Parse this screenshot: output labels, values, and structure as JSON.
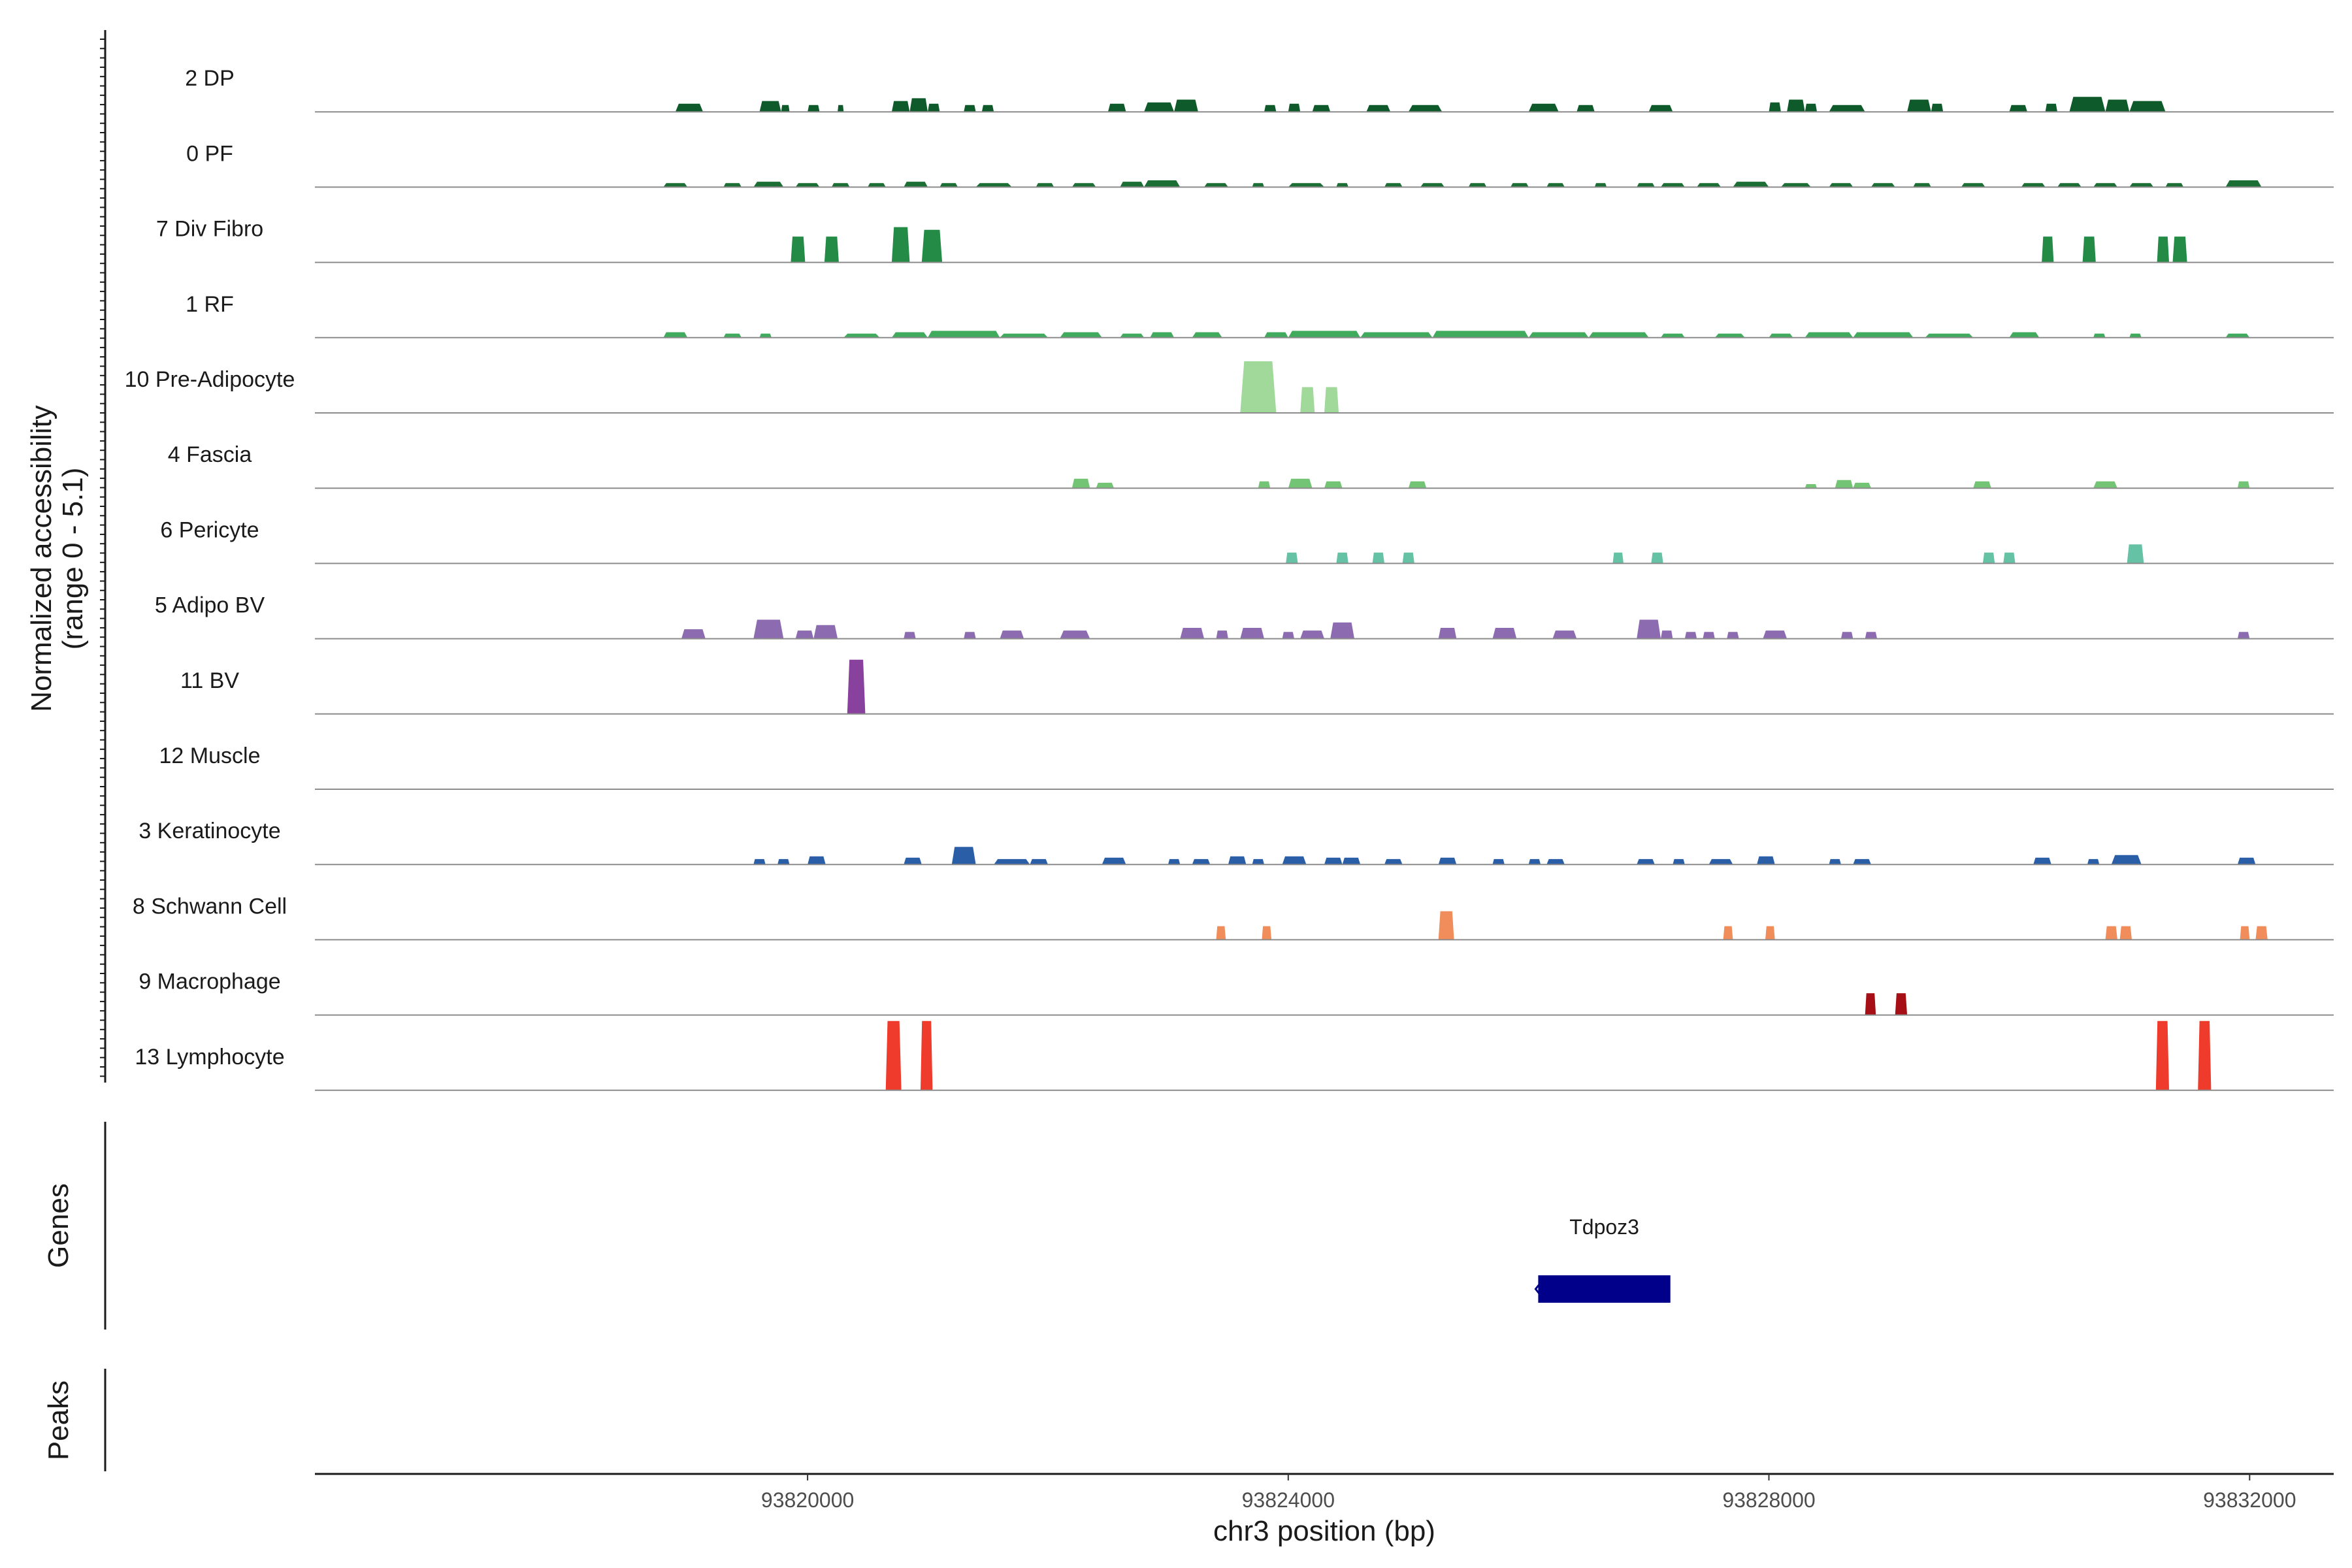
{
  "chart_data": {
    "type": "area",
    "xlabel": "chr3 position (bp)",
    "ylabel": "Normalized accessibility",
    "ylabel_range": "(range 0 - 5.1)",
    "ylim": [
      0,
      5.1
    ],
    "xlim": [
      93815900,
      93832700
    ],
    "xticks": [
      93820000,
      93824000,
      93828000,
      93832000
    ],
    "tick_labels": [
      "93820000",
      "93824000",
      "93828000",
      "93832000"
    ],
    "genes_panel_label": "Genes",
    "peaks_panel_label": "Peaks",
    "genes": [
      {
        "name": "Tdpoz3",
        "start": 93826080,
        "end": 93827180,
        "strand": "-"
      }
    ],
    "tracks": [
      {
        "name": "2 DP",
        "color": "#0f5a2a",
        "peaks": [
          [
            93818900,
            93819130,
            0.6
          ],
          [
            93819600,
            93819780,
            0.8
          ],
          [
            93819780,
            93819850,
            0.5
          ],
          [
            93820000,
            93820100,
            0.5
          ],
          [
            93820250,
            93820300,
            0.5
          ],
          [
            93820700,
            93820850,
            0.8
          ],
          [
            93820850,
            93821000,
            1.0
          ],
          [
            93821000,
            93821100,
            0.6
          ],
          [
            93821300,
            93821400,
            0.5
          ],
          [
            93821450,
            93821550,
            0.5
          ],
          [
            93822500,
            93822650,
            0.6
          ],
          [
            93822800,
            93823050,
            0.7
          ],
          [
            93823050,
            93823250,
            0.9
          ],
          [
            93823800,
            93823900,
            0.5
          ],
          [
            93824000,
            93824100,
            0.6
          ],
          [
            93824200,
            93824350,
            0.5
          ],
          [
            93824650,
            93824850,
            0.5
          ],
          [
            93825000,
            93825280,
            0.5
          ],
          [
            93826000,
            93826250,
            0.6
          ],
          [
            93826400,
            93826550,
            0.5
          ],
          [
            93827000,
            93827200,
            0.5
          ],
          [
            93828000,
            93828100,
            0.7
          ],
          [
            93828150,
            93828300,
            0.9
          ],
          [
            93828300,
            93828400,
            0.6
          ],
          [
            93828500,
            93828800,
            0.5
          ],
          [
            93829150,
            93829350,
            0.9
          ],
          [
            93829350,
            93829450,
            0.6
          ],
          [
            93830000,
            93830150,
            0.5
          ],
          [
            93830300,
            93830400,
            0.6
          ],
          [
            93830500,
            93830800,
            1.1
          ],
          [
            93830800,
            93831000,
            0.9
          ],
          [
            93831000,
            93831300,
            0.8
          ]
        ]
      },
      {
        "name": "0 PF",
        "color": "#1b6e34",
        "peaks": [
          [
            93818800,
            93819000,
            0.3
          ],
          [
            93819300,
            93819450,
            0.3
          ],
          [
            93819550,
            93819800,
            0.4
          ],
          [
            93819900,
            93820100,
            0.3
          ],
          [
            93820200,
            93820350,
            0.3
          ],
          [
            93820500,
            93820650,
            0.3
          ],
          [
            93820800,
            93821000,
            0.4
          ],
          [
            93821100,
            93821250,
            0.3
          ],
          [
            93821400,
            93821700,
            0.3
          ],
          [
            93821900,
            93822050,
            0.3
          ],
          [
            93822200,
            93822400,
            0.3
          ],
          [
            93822600,
            93822800,
            0.4
          ],
          [
            93822800,
            93823100,
            0.5
          ],
          [
            93823300,
            93823500,
            0.3
          ],
          [
            93823700,
            93823800,
            0.3
          ],
          [
            93824000,
            93824300,
            0.3
          ],
          [
            93824400,
            93824500,
            0.3
          ],
          [
            93824800,
            93824950,
            0.3
          ],
          [
            93825100,
            93825300,
            0.3
          ],
          [
            93825500,
            93825650,
            0.3
          ],
          [
            93825850,
            93826000,
            0.3
          ],
          [
            93826150,
            93826300,
            0.3
          ],
          [
            93826550,
            93826650,
            0.3
          ],
          [
            93826900,
            93827050,
            0.3
          ],
          [
            93827100,
            93827300,
            0.3
          ],
          [
            93827400,
            93827600,
            0.3
          ],
          [
            93827700,
            93828000,
            0.4
          ],
          [
            93828100,
            93828350,
            0.3
          ],
          [
            93828500,
            93828700,
            0.3
          ],
          [
            93828850,
            93829050,
            0.3
          ],
          [
            93829200,
            93829350,
            0.3
          ],
          [
            93829600,
            93829800,
            0.3
          ],
          [
            93830100,
            93830300,
            0.3
          ],
          [
            93830400,
            93830600,
            0.3
          ],
          [
            93830700,
            93830900,
            0.3
          ],
          [
            93831000,
            93831200,
            0.3
          ],
          [
            93831300,
            93831450,
            0.3
          ],
          [
            93831800,
            93832100,
            0.5
          ]
        ]
      },
      {
        "name": "7 Div Fibro",
        "color": "#238b45",
        "peaks": [
          [
            93819860,
            93819980,
            1.9
          ],
          [
            93820140,
            93820260,
            1.9
          ],
          [
            93820700,
            93820850,
            2.6
          ],
          [
            93820950,
            93821120,
            2.4
          ],
          [
            93830270,
            93830370,
            1.9
          ],
          [
            93830610,
            93830720,
            1.9
          ],
          [
            93831230,
            93831330,
            1.9
          ],
          [
            93831360,
            93831480,
            1.9
          ]
        ]
      },
      {
        "name": "1 RF",
        "color": "#41ab5d",
        "peaks": [
          [
            93818800,
            93819000,
            0.4
          ],
          [
            93819300,
            93819450,
            0.3
          ],
          [
            93819600,
            93819700,
            0.3
          ],
          [
            93820300,
            93820600,
            0.3
          ],
          [
            93820700,
            93821000,
            0.4
          ],
          [
            93821000,
            93821600,
            0.5
          ],
          [
            93821600,
            93822000,
            0.3
          ],
          [
            93822100,
            93822450,
            0.4
          ],
          [
            93822600,
            93822800,
            0.3
          ],
          [
            93822850,
            93823050,
            0.4
          ],
          [
            93823200,
            93823450,
            0.4
          ],
          [
            93823800,
            93824000,
            0.4
          ],
          [
            93824000,
            93824600,
            0.5
          ],
          [
            93824600,
            93825200,
            0.4
          ],
          [
            93825200,
            93826000,
            0.5
          ],
          [
            93826000,
            93826500,
            0.4
          ],
          [
            93826500,
            93827000,
            0.4
          ],
          [
            93827100,
            93827300,
            0.3
          ],
          [
            93827550,
            93827800,
            0.3
          ],
          [
            93828000,
            93828200,
            0.3
          ],
          [
            93828300,
            93828700,
            0.4
          ],
          [
            93828700,
            93829200,
            0.4
          ],
          [
            93829300,
            93829700,
            0.3
          ],
          [
            93830000,
            93830250,
            0.4
          ],
          [
            93830700,
            93830800,
            0.3
          ],
          [
            93831000,
            93831100,
            0.3
          ],
          [
            93831800,
            93832000,
            0.3
          ]
        ]
      },
      {
        "name": "10 Pre-Adipocyte",
        "color": "#a1d99b",
        "peaks": [
          [
            93823600,
            93823900,
            3.8
          ],
          [
            93824100,
            93824220,
            1.9
          ],
          [
            93824300,
            93824420,
            1.9
          ]
        ]
      },
      {
        "name": "4 Fascia",
        "color": "#74c476",
        "peaks": [
          [
            93822200,
            93822350,
            0.7
          ],
          [
            93822400,
            93822550,
            0.4
          ],
          [
            93823750,
            93823850,
            0.5
          ],
          [
            93824000,
            93824200,
            0.7
          ],
          [
            93824300,
            93824450,
            0.5
          ],
          [
            93825000,
            93825150,
            0.5
          ],
          [
            93828300,
            93828400,
            0.3
          ],
          [
            93828550,
            93828700,
            0.6
          ],
          [
            93828700,
            93828850,
            0.4
          ],
          [
            93829700,
            93829850,
            0.5
          ],
          [
            93830700,
            93830900,
            0.5
          ],
          [
            93831900,
            93832000,
            0.5
          ]
        ]
      },
      {
        "name": "6 Pericyte",
        "color": "#66c2a4",
        "peaks": [
          [
            93823980,
            93824080,
            0.8
          ],
          [
            93824400,
            93824500,
            0.8
          ],
          [
            93824700,
            93824800,
            0.8
          ],
          [
            93824950,
            93825050,
            0.8
          ],
          [
            93826700,
            93826790,
            0.8
          ],
          [
            93827020,
            93827120,
            0.8
          ],
          [
            93829780,
            93829880,
            0.8
          ],
          [
            93829950,
            93830050,
            0.8
          ],
          [
            93830980,
            93831120,
            1.4
          ]
        ]
      },
      {
        "name": "5 Adipo BV",
        "color": "#8c6bb1",
        "peaks": [
          [
            93818950,
            93819150,
            0.7
          ],
          [
            93819550,
            93819800,
            1.4
          ],
          [
            93819900,
            93820050,
            0.6
          ],
          [
            93820050,
            93820250,
            1.0
          ],
          [
            93820800,
            93820900,
            0.5
          ],
          [
            93821300,
            93821400,
            0.5
          ],
          [
            93821600,
            93821800,
            0.6
          ],
          [
            93822100,
            93822350,
            0.6
          ],
          [
            93823100,
            93823300,
            0.8
          ],
          [
            93823400,
            93823500,
            0.6
          ],
          [
            93823600,
            93823800,
            0.8
          ],
          [
            93823950,
            93824050,
            0.5
          ],
          [
            93824100,
            93824300,
            0.6
          ],
          [
            93824350,
            93824550,
            1.2
          ],
          [
            93825250,
            93825400,
            0.8
          ],
          [
            93825700,
            93825900,
            0.8
          ],
          [
            93826200,
            93826400,
            0.6
          ],
          [
            93826900,
            93827100,
            1.4
          ],
          [
            93827100,
            93827200,
            0.6
          ],
          [
            93827300,
            93827400,
            0.5
          ],
          [
            93827450,
            93827550,
            0.5
          ],
          [
            93827650,
            93827750,
            0.5
          ],
          [
            93827950,
            93828150,
            0.6
          ],
          [
            93828600,
            93828700,
            0.5
          ],
          [
            93828800,
            93828900,
            0.5
          ],
          [
            93831900,
            93832000,
            0.5
          ]
        ]
      },
      {
        "name": "11 BV",
        "color": "#88419d",
        "peaks": [
          [
            93820330,
            93820480,
            4.0
          ]
        ]
      },
      {
        "name": "12 Muscle",
        "color": "#6a51a3",
        "peaks": []
      },
      {
        "name": "3 Keratinocyte",
        "color": "#2a5fa8",
        "peaks": [
          [
            93819550,
            93819650,
            0.4
          ],
          [
            93819750,
            93819850,
            0.4
          ],
          [
            93820000,
            93820150,
            0.6
          ],
          [
            93820800,
            93820950,
            0.5
          ],
          [
            93821200,
            93821400,
            1.3
          ],
          [
            93821550,
            93821850,
            0.4
          ],
          [
            93821850,
            93822000,
            0.4
          ],
          [
            93822450,
            93822650,
            0.5
          ],
          [
            93823000,
            93823100,
            0.4
          ],
          [
            93823200,
            93823350,
            0.4
          ],
          [
            93823500,
            93823650,
            0.6
          ],
          [
            93823700,
            93823800,
            0.4
          ],
          [
            93823950,
            93824150,
            0.6
          ],
          [
            93824300,
            93824450,
            0.5
          ],
          [
            93824450,
            93824600,
            0.5
          ],
          [
            93824800,
            93824950,
            0.4
          ],
          [
            93825250,
            93825400,
            0.5
          ],
          [
            93825700,
            93825800,
            0.4
          ],
          [
            93826000,
            93826100,
            0.4
          ],
          [
            93826150,
            93826300,
            0.4
          ],
          [
            93826900,
            93827050,
            0.4
          ],
          [
            93827200,
            93827300,
            0.4
          ],
          [
            93827500,
            93827700,
            0.4
          ],
          [
            93827900,
            93828050,
            0.6
          ],
          [
            93828500,
            93828600,
            0.4
          ],
          [
            93828700,
            93828850,
            0.4
          ],
          [
            93830200,
            93830350,
            0.5
          ],
          [
            93830650,
            93830750,
            0.4
          ],
          [
            93830850,
            93831100,
            0.7
          ],
          [
            93831900,
            93832050,
            0.5
          ]
        ]
      },
      {
        "name": "8 Schwann Cell",
        "color": "#f08d5a",
        "peaks": [
          [
            93823400,
            93823480,
            1.0
          ],
          [
            93823780,
            93823860,
            1.0
          ],
          [
            93825250,
            93825380,
            2.1
          ],
          [
            93827620,
            93827700,
            1.0
          ],
          [
            93827970,
            93828050,
            1.0
          ],
          [
            93830800,
            93830900,
            1.0
          ],
          [
            93830920,
            93831020,
            1.0
          ],
          [
            93831920,
            93832000,
            1.0
          ],
          [
            93832050,
            93832150,
            1.0
          ]
        ]
      },
      {
        "name": "9 Macrophage",
        "color": "#a50f15",
        "peaks": [
          [
            93828800,
            93828890,
            1.6
          ],
          [
            93829050,
            93829150,
            1.6
          ]
        ]
      },
      {
        "name": "13 Lymphocyte",
        "color": "#ef3b2c",
        "peaks": [
          [
            93820650,
            93820780,
            5.1
          ],
          [
            93820940,
            93821040,
            5.1
          ],
          [
            93831220,
            93831330,
            5.1
          ],
          [
            93831570,
            93831680,
            5.1
          ]
        ]
      }
    ]
  }
}
